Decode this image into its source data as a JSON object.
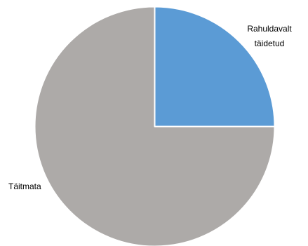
{
  "chart_data": {
    "type": "pie",
    "title": "",
    "legend": "none",
    "start_angle": "12 o'clock, clockwise",
    "slices": [
      {
        "label_lines": [
          "Rahuldavalt",
          "täidetud"
        ],
        "value": 25,
        "color": "#5B9BD5"
      },
      {
        "label_lines": [
          "Täitmata"
        ],
        "value": 75,
        "color": "#ADAAA8"
      }
    ]
  }
}
